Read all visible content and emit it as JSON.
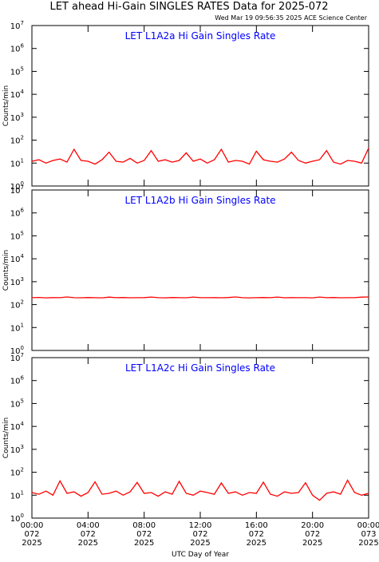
{
  "header": {
    "title": "LET ahead Hi-Gain SINGLES RATES Data for 2025-072",
    "timestamp": "Wed Mar 19 09:56:35 2025 ACE Science Center"
  },
  "chart_data": [
    {
      "type": "line",
      "title": "LET L1A2a Hi Gain Singles Rate",
      "title_color": "#0000ff",
      "y_label": "Counts/min",
      "log_y": true,
      "xlim": [
        0,
        24
      ],
      "ylim": [
        1,
        10000000
      ],
      "yticks": [
        {
          "value": 1,
          "label": "10",
          "sup": "0"
        },
        {
          "value": 10,
          "label": "10",
          "sup": "1"
        },
        {
          "value": 100,
          "label": "10",
          "sup": "2"
        },
        {
          "value": 1000,
          "label": "10",
          "sup": "3"
        },
        {
          "value": 10000,
          "label": "10",
          "sup": "4"
        },
        {
          "value": 100000,
          "label": "10",
          "sup": "5"
        },
        {
          "value": 1000000,
          "label": "10",
          "sup": "6"
        },
        {
          "value": 10000000,
          "label": "10",
          "sup": "7"
        }
      ],
      "x": [
        0,
        0.5,
        1,
        1.5,
        2,
        2.5,
        3,
        3.5,
        4,
        4.5,
        5,
        5.5,
        6,
        6.5,
        7,
        7.5,
        8,
        8.5,
        9,
        9.5,
        10,
        10.5,
        11,
        11.5,
        12,
        12.5,
        13,
        13.5,
        14,
        14.5,
        15,
        15.5,
        16,
        16.5,
        17,
        17.5,
        18,
        18.5,
        19,
        19.5,
        20,
        20.5,
        21,
        21.5,
        22,
        22.5,
        23,
        23.5,
        24
      ],
      "series": [
        {
          "color": "#ff0000",
          "values": [
            12,
            14,
            10,
            13,
            15,
            11,
            40,
            13,
            12,
            9,
            14,
            30,
            12,
            11,
            16,
            10,
            13,
            35,
            12,
            14,
            11,
            13,
            28,
            12,
            15,
            10,
            14,
            40,
            11,
            13,
            12,
            9,
            33,
            14,
            12,
            11,
            15,
            30,
            13,
            10,
            12,
            14,
            35,
            11,
            9,
            13,
            12,
            10,
            45
          ]
        }
      ]
    },
    {
      "type": "line",
      "title": "LET L1A2b Hi Gain Singles Rate",
      "title_color": "#0000ff",
      "y_label": "Counts/min",
      "log_y": true,
      "xlim": [
        0,
        24
      ],
      "ylim": [
        1,
        10000000
      ],
      "yticks": [
        {
          "value": 1,
          "label": "10",
          "sup": "0"
        },
        {
          "value": 10,
          "label": "10",
          "sup": "1"
        },
        {
          "value": 100,
          "label": "10",
          "sup": "2"
        },
        {
          "value": 1000,
          "label": "10",
          "sup": "3"
        },
        {
          "value": 10000,
          "label": "10",
          "sup": "4"
        },
        {
          "value": 100000,
          "label": "10",
          "sup": "5"
        },
        {
          "value": 1000000,
          "label": "10",
          "sup": "6"
        },
        {
          "value": 10000000,
          "label": "10",
          "sup": "7"
        }
      ],
      "x": [
        0,
        0.5,
        1,
        1.5,
        2,
        2.5,
        3,
        3.5,
        4,
        4.5,
        5,
        5.5,
        6,
        6.5,
        7,
        7.5,
        8,
        8.5,
        9,
        9.5,
        10,
        10.5,
        11,
        11.5,
        12,
        12.5,
        13,
        13.5,
        14,
        14.5,
        15,
        15.5,
        16,
        16.5,
        17,
        17.5,
        18,
        18.5,
        19,
        19.5,
        20,
        20.5,
        21,
        21.5,
        22,
        22.5,
        23,
        23.5,
        24
      ],
      "series": [
        {
          "color": "#ff0000",
          "values": [
            200,
            205,
            198,
            202,
            200,
            215,
            201,
            199,
            203,
            200,
            197,
            212,
            200,
            204,
            199,
            201,
            202,
            214,
            200,
            198,
            203,
            200,
            199,
            213,
            201,
            200,
            202,
            199,
            204,
            216,
            200,
            198,
            201,
            203,
            200,
            214,
            199,
            202,
            200,
            201,
            198,
            213,
            200,
            203,
            199,
            201,
            200,
            212,
            215
          ]
        }
      ]
    },
    {
      "type": "line",
      "title": "LET L1A2c Hi Gain Singles Rate",
      "title_color": "#0000ff",
      "y_label": "Counts/min",
      "x_label": "UTC Day of Year",
      "log_y": true,
      "xlim": [
        0,
        24
      ],
      "ylim": [
        1,
        10000000
      ],
      "yticks": [
        {
          "value": 1,
          "label": "10",
          "sup": "0"
        },
        {
          "value": 10,
          "label": "10",
          "sup": "1"
        },
        {
          "value": 100,
          "label": "10",
          "sup": "2"
        },
        {
          "value": 1000,
          "label": "10",
          "sup": "3"
        },
        {
          "value": 10000,
          "label": "10",
          "sup": "4"
        },
        {
          "value": 100000,
          "label": "10",
          "sup": "5"
        },
        {
          "value": 1000000,
          "label": "10",
          "sup": "6"
        },
        {
          "value": 10000000,
          "label": "10",
          "sup": "7"
        }
      ],
      "xticks": [
        {
          "value": 0,
          "label": [
            "00:00",
            "072",
            "2025"
          ]
        },
        {
          "value": 4,
          "label": [
            "04:00",
            "072",
            "2025"
          ]
        },
        {
          "value": 8,
          "label": [
            "08:00",
            "072",
            "2025"
          ]
        },
        {
          "value": 12,
          "label": [
            "12:00",
            "072",
            "2025"
          ]
        },
        {
          "value": 16,
          "label": [
            "16:00",
            "072",
            "2025"
          ]
        },
        {
          "value": 20,
          "label": [
            "20:00",
            "072",
            "2025"
          ]
        },
        {
          "value": 24,
          "label": [
            "00:00",
            "073",
            "2025"
          ]
        }
      ],
      "x": [
        0,
        0.5,
        1,
        1.5,
        2,
        2.5,
        3,
        3.5,
        4,
        4.5,
        5,
        5.5,
        6,
        6.5,
        7,
        7.5,
        8,
        8.5,
        9,
        9.5,
        10,
        10.5,
        11,
        11.5,
        12,
        12.5,
        13,
        13.5,
        14,
        14.5,
        15,
        15.5,
        16,
        16.5,
        17,
        17.5,
        18,
        18.5,
        19,
        19.5,
        20,
        20.5,
        21,
        21.5,
        22,
        22.5,
        23,
        23.5,
        24
      ],
      "series": [
        {
          "color": "#ff0000",
          "values": [
            13,
            11,
            15,
            10,
            42,
            12,
            14,
            9,
            13,
            38,
            11,
            12,
            15,
            10,
            14,
            36,
            12,
            13,
            9,
            14,
            11,
            40,
            12,
            10,
            15,
            13,
            11,
            34,
            12,
            14,
            10,
            13,
            12,
            37,
            11,
            9,
            14,
            12,
            13,
            35,
            10,
            6,
            12,
            14,
            11,
            45,
            13,
            10,
            12
          ]
        }
      ]
    }
  ]
}
